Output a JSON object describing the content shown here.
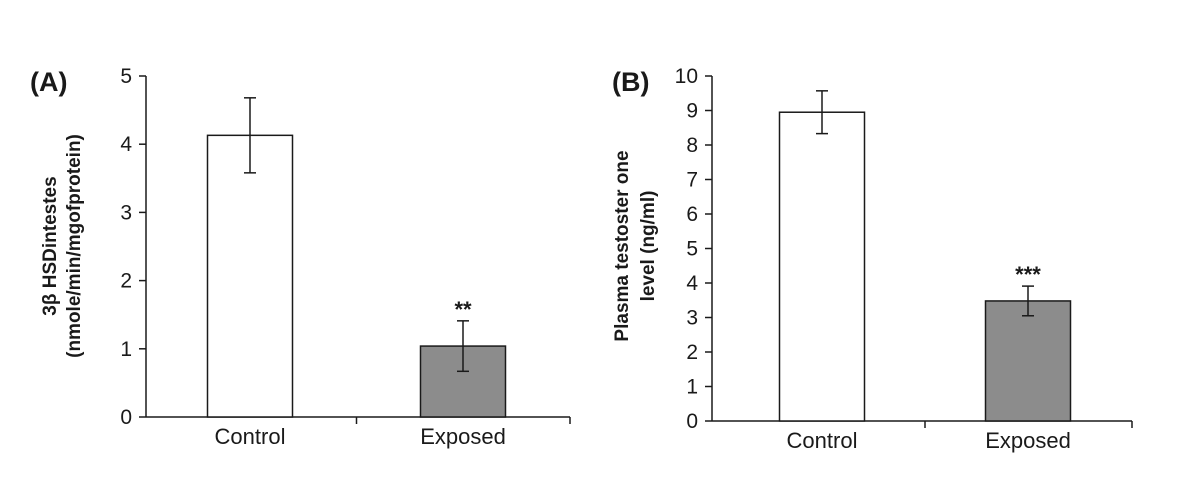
{
  "chart_data": [
    {
      "type": "bar",
      "panel_label": "(A)",
      "categories": [
        "Control",
        "Exposed"
      ],
      "values": [
        4.13,
        1.04
      ],
      "errors": [
        0.55,
        0.37
      ],
      "significance": [
        "",
        "**"
      ],
      "bar_colors": [
        "#ffffff",
        "#8c8c8c"
      ],
      "ylabel_lines": [
        "3β HSDintestes",
        "(nmole/min/mgofprotein)"
      ],
      "ylim": [
        0,
        5
      ],
      "yticks": [
        0,
        1,
        2,
        3,
        4,
        5
      ],
      "grid": false
    },
    {
      "type": "bar",
      "panel_label": "(B)",
      "categories": [
        "Control",
        "Exposed"
      ],
      "values": [
        8.95,
        3.48
      ],
      "errors": [
        0.62,
        0.43
      ],
      "significance": [
        "",
        "***"
      ],
      "bar_colors": [
        "#ffffff",
        "#8c8c8c"
      ],
      "ylabel_lines": [
        "Plasma testoster one",
        "level (ng/ml)"
      ],
      "ylim": [
        0,
        10
      ],
      "yticks": [
        0,
        1,
        2,
        3,
        4,
        5,
        6,
        7,
        8,
        9,
        10
      ],
      "grid": false
    }
  ]
}
